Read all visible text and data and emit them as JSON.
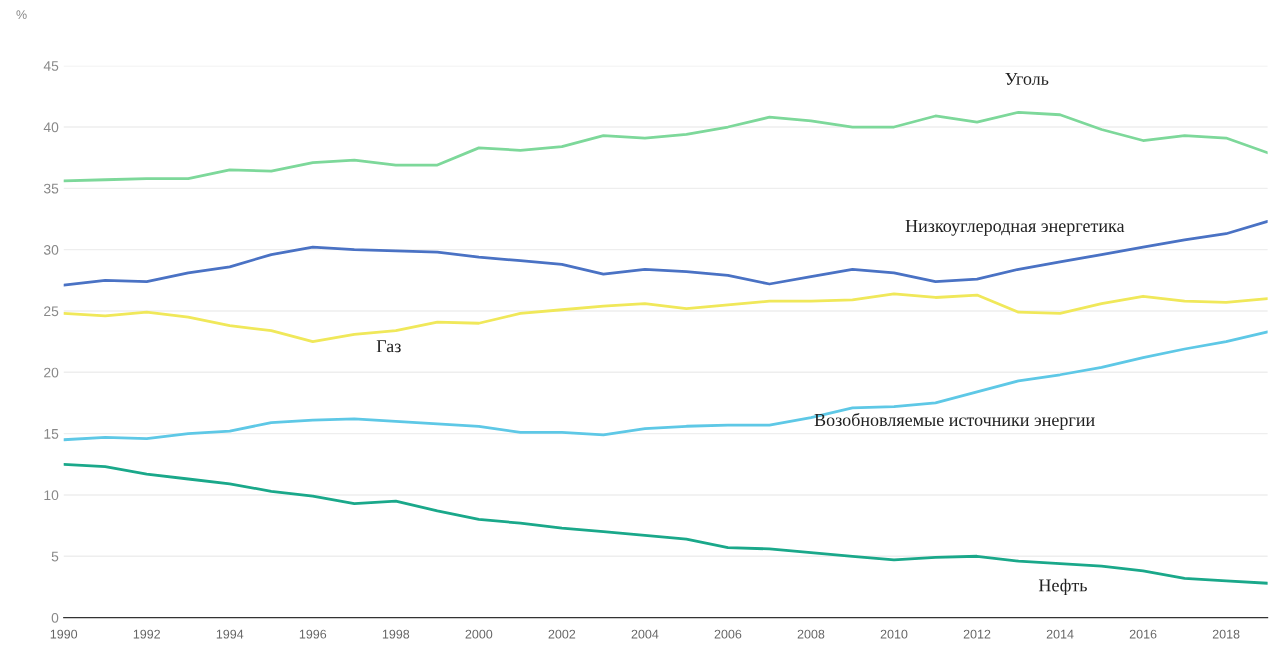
{
  "chart_data": {
    "type": "line",
    "ylabel": "%",
    "x": [
      1990,
      1991,
      1992,
      1993,
      1994,
      1995,
      1996,
      1997,
      1998,
      1999,
      2000,
      2001,
      2002,
      2003,
      2004,
      2005,
      2006,
      2007,
      2008,
      2009,
      2010,
      2011,
      2012,
      2013,
      2014,
      2015,
      2016,
      2017,
      2018,
      2019
    ],
    "series": [
      {
        "name": "Уголь",
        "color": "#7dd89a",
        "values": [
          35.6,
          35.7,
          35.8,
          35.8,
          36.5,
          36.4,
          37.1,
          37.3,
          36.9,
          36.9,
          38.3,
          38.1,
          38.4,
          39.3,
          39.1,
          39.4,
          40.0,
          40.8,
          40.5,
          40.0,
          40.0,
          40.9,
          40.4,
          41.2,
          41.0,
          39.8,
          38.9,
          39.3,
          39.1,
          37.9
        ]
      },
      {
        "name": "Низкоуглеродная энергетика",
        "color": "#4a72c4",
        "values": [
          27.1,
          27.5,
          27.4,
          28.1,
          28.6,
          29.6,
          30.2,
          30.0,
          29.9,
          29.8,
          29.4,
          29.1,
          28.8,
          28.0,
          28.4,
          28.2,
          27.9,
          27.2,
          27.8,
          28.4,
          28.1,
          27.4,
          27.6,
          28.4,
          29.0,
          29.6,
          30.2,
          30.8,
          31.3,
          32.3
        ]
      },
      {
        "name": "Газ",
        "color": "#f0e85a",
        "values": [
          24.8,
          24.6,
          24.9,
          24.5,
          23.8,
          23.4,
          22.5,
          23.1,
          23.4,
          24.1,
          24.0,
          24.8,
          25.1,
          25.4,
          25.6,
          25.2,
          25.5,
          25.8,
          25.8,
          25.9,
          26.4,
          26.1,
          26.3,
          24.9,
          24.8,
          25.6,
          26.2,
          25.8,
          25.7,
          26.0
        ]
      },
      {
        "name": "Возобновляемые источники энергии",
        "color": "#5ec8e6",
        "values": [
          14.5,
          14.7,
          14.6,
          15.0,
          15.2,
          15.9,
          16.1,
          16.2,
          16.0,
          15.8,
          15.6,
          15.1,
          15.1,
          14.9,
          15.4,
          15.6,
          15.7,
          15.7,
          16.3,
          17.1,
          17.2,
          17.5,
          18.4,
          19.3,
          19.8,
          20.4,
          21.2,
          21.9,
          22.5,
          23.3
        ]
      },
      {
        "name": "Нефть",
        "color": "#1aa88a",
        "values": [
          12.5,
          12.3,
          11.7,
          11.3,
          10.9,
          10.3,
          9.9,
          9.3,
          9.5,
          8.7,
          8.0,
          7.7,
          7.3,
          7.0,
          6.7,
          6.4,
          5.7,
          5.6,
          5.3,
          5.0,
          4.7,
          4.9,
          5.0,
          4.6,
          4.4,
          4.2,
          3.8,
          3.2,
          3.0,
          2.8
        ]
      }
    ],
    "xlim": [
      1990,
      2019
    ],
    "xticks": [
      1990,
      1992,
      1994,
      1996,
      1998,
      2000,
      2002,
      2004,
      2006,
      2008,
      2010,
      2012,
      2014,
      2016,
      2018
    ],
    "ylim": [
      0,
      45
    ],
    "yticks": [
      0,
      5,
      10,
      15,
      20,
      25,
      30,
      35,
      40,
      45
    ],
    "grid": "y",
    "legend": false,
    "marker": "none",
    "line_style": "solid"
  }
}
